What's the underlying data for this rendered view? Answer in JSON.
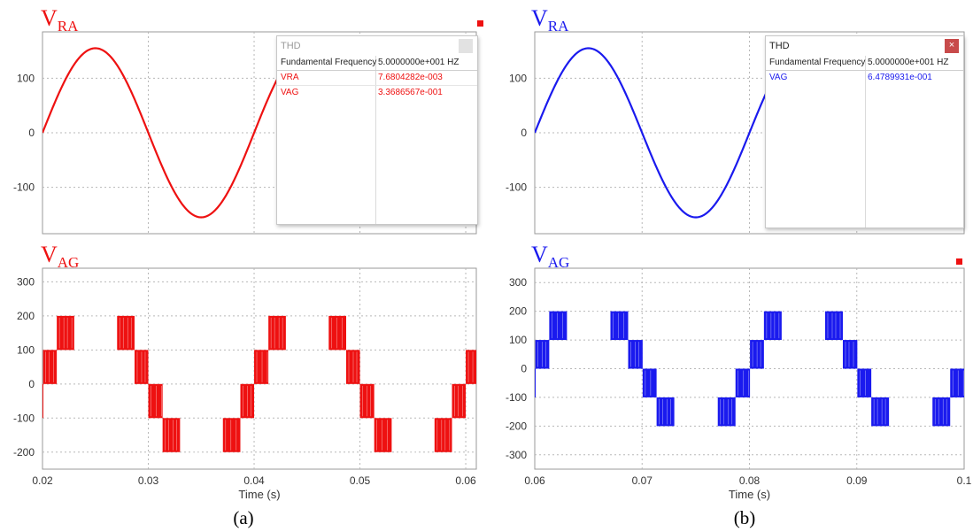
{
  "panels": [
    {
      "id": "a",
      "color": "#ee1111",
      "caption": "(a)",
      "top_title": {
        "main": "V",
        "sub": "RA"
      },
      "bottom_title": {
        "main": "V",
        "sub": "AG"
      },
      "thd": {
        "title": "THD",
        "close_label": "×",
        "close_style": "inactive",
        "header_label": "Fundamental Frequency",
        "header_value": "5.0000000e+001 HZ",
        "rows": [
          {
            "label": "VRA",
            "value": "7.6804282e-003"
          },
          {
            "label": "VAG",
            "value": "3.3686567e-001"
          }
        ]
      }
    },
    {
      "id": "b",
      "color": "#1a1aee",
      "caption": "(b)",
      "top_title": {
        "main": "V",
        "sub": "RA"
      },
      "bottom_title": {
        "main": "V",
        "sub": "AG"
      },
      "thd": {
        "title": "THD",
        "close_label": "×",
        "close_style": "active",
        "header_label": "Fundamental Frequency",
        "header_value": "5.0000000e+001 HZ",
        "rows": [
          {
            "label": "VAG",
            "value": "6.4789931e-001"
          }
        ]
      }
    }
  ],
  "chart_data": [
    {
      "panel": "a-top",
      "type": "line",
      "series": [
        {
          "name": "VRA",
          "color": "#ee1111",
          "amplitude": 155,
          "frequency_hz": 50,
          "x": [
            0.02,
            0.025,
            0.03,
            0.035,
            0.04
          ],
          "y": [
            0,
            155,
            0,
            -155,
            0
          ]
        }
      ],
      "xlim": [
        0.02,
        0.061
      ],
      "ylim": [
        -185,
        185
      ],
      "yticks": [
        -100,
        0,
        100
      ],
      "xgrid": [
        0.03,
        0.04,
        0.05,
        0.06
      ],
      "grid": true
    },
    {
      "panel": "a-bottom",
      "type": "line",
      "series": [
        {
          "name": "VAG",
          "color": "#ee1111",
          "kind": "multilevel-pwm",
          "levels": [
            -200,
            -100,
            0,
            100,
            200
          ],
          "frequency_hz": 50
        }
      ],
      "xlim": [
        0.02,
        0.061
      ],
      "ylim": [
        -250,
        340
      ],
      "yticks": [
        -200,
        -100,
        0,
        100,
        200,
        300
      ],
      "xticks": [
        0.02,
        0.03,
        0.04,
        0.05,
        0.06
      ],
      "xlabel": "Time (s)",
      "grid": true
    },
    {
      "panel": "b-top",
      "type": "line",
      "series": [
        {
          "name": "VRA",
          "color": "#1a1aee",
          "amplitude": 155,
          "frequency_hz": 50,
          "x": [
            0.06,
            0.065,
            0.07,
            0.075,
            0.08
          ],
          "y": [
            0,
            155,
            0,
            -155,
            0
          ]
        }
      ],
      "xlim": [
        0.06,
        0.1
      ],
      "ylim": [
        -185,
        185
      ],
      "yticks": [
        -100,
        0,
        100
      ],
      "xgrid": [
        0.07,
        0.08,
        0.09
      ],
      "grid": true
    },
    {
      "panel": "b-bottom",
      "type": "line",
      "series": [
        {
          "name": "VAG",
          "color": "#1a1aee",
          "kind": "multilevel-pwm",
          "levels": [
            -200,
            -100,
            0,
            100,
            200
          ],
          "frequency_hz": 50
        }
      ],
      "xlim": [
        0.06,
        0.1
      ],
      "ylim": [
        -350,
        350
      ],
      "yticks": [
        -300,
        -200,
        -100,
        0,
        100,
        200,
        300
      ],
      "xticks": [
        0.06,
        0.07,
        0.08,
        0.09,
        0.1
      ],
      "xlabel": "Time (s)",
      "grid": true
    }
  ]
}
